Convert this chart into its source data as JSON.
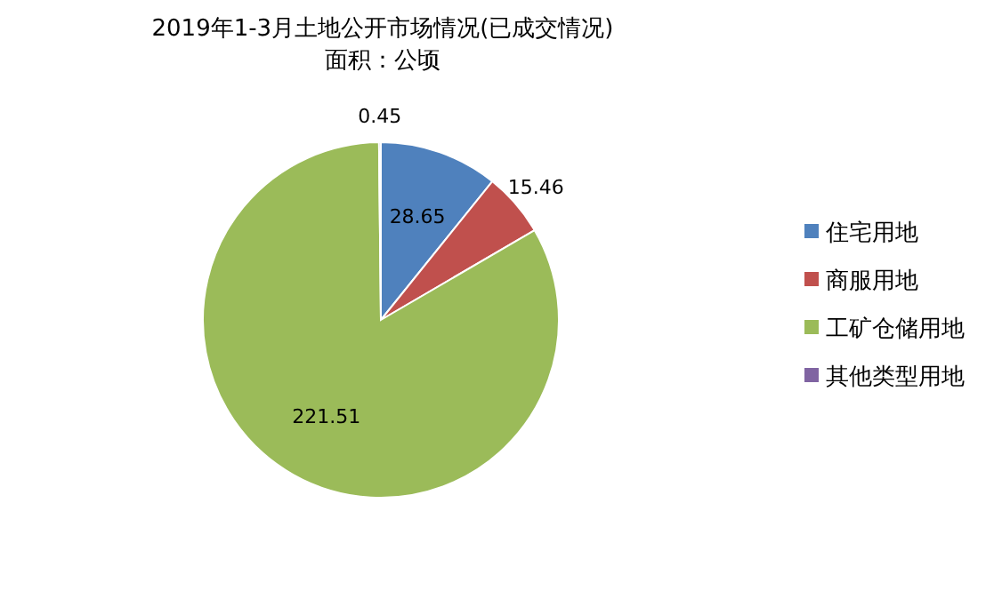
{
  "chart_data": {
    "type": "pie",
    "title": "2019年1-3月土地公开市场情况(已成交情况)",
    "subtitle": "面积：公顷",
    "categories": [
      "住宅用地",
      "商服用地",
      "工矿仓储用地",
      "其他类型用地"
    ],
    "values": [
      28.65,
      15.46,
      221.51,
      0.45
    ],
    "colors": [
      "#4f81bd",
      "#c0504d",
      "#9bbb59",
      "#8064a2"
    ],
    "data_labels": true,
    "legend": "right"
  }
}
